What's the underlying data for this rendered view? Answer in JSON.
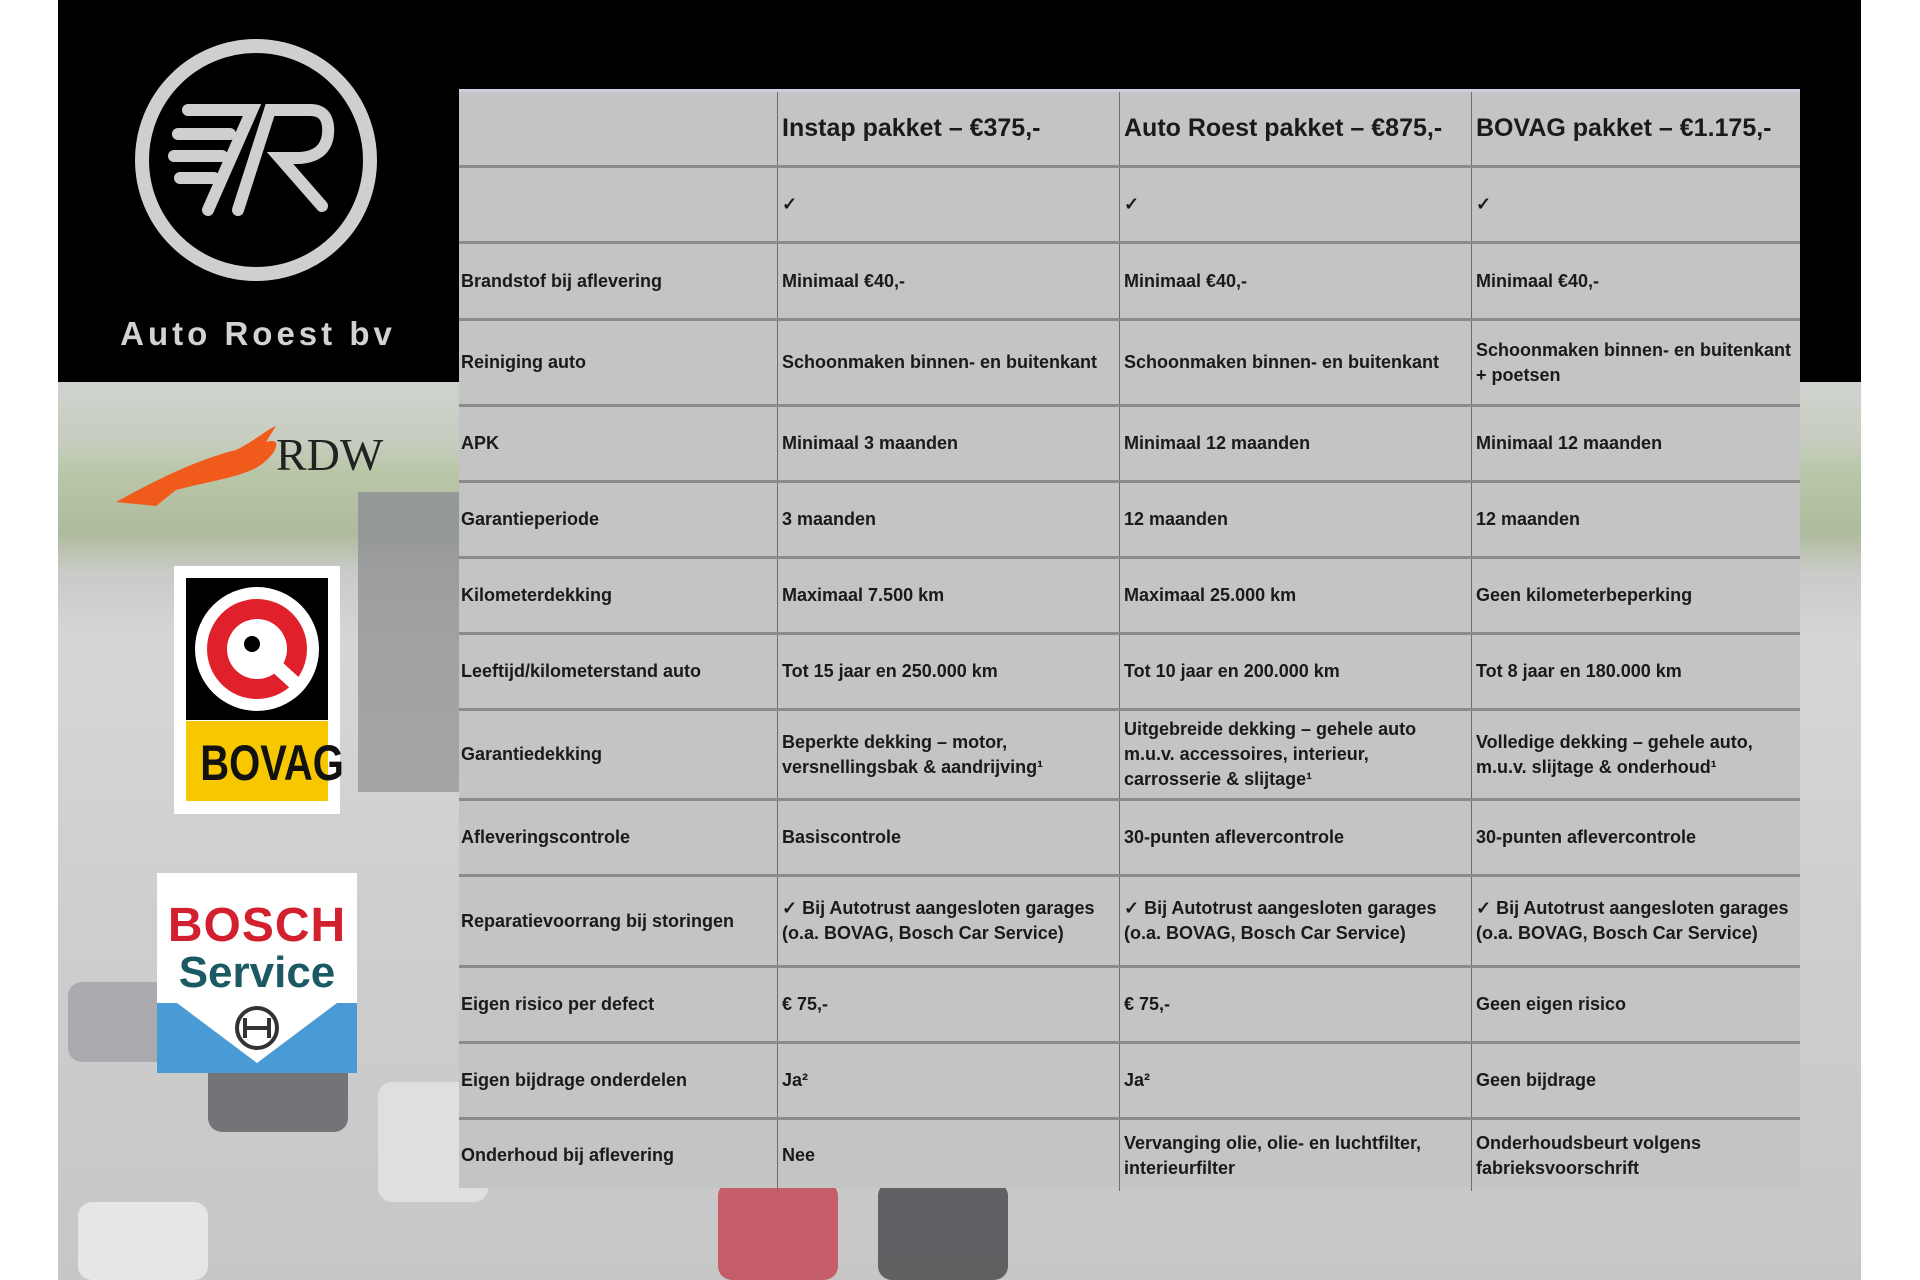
{
  "brand": {
    "name": "Auto Roest bv",
    "logo_monogram": "7R"
  },
  "partner_logos": [
    {
      "name": "RDW",
      "color": "#f05a1a"
    },
    {
      "name": "BOVAG",
      "color": "#f7c800"
    },
    {
      "name": "BOSCH",
      "subtitle": "Service",
      "color": "#d2202e"
    }
  ],
  "table": {
    "headers": [
      "",
      "Instap pakket – €375,-",
      "Auto Roest pakket – €875,-",
      "BOVAG pakket – €1.175,-"
    ],
    "rows": [
      [
        "",
        "✓",
        "✓",
        "✓"
      ],
      [
        "Brandstof bij aflevering",
        "Minimaal €40,-",
        "Minimaal €40,-",
        "Minimaal €40,-"
      ],
      [
        "Reiniging auto",
        "Schoonmaken binnen- en buitenkant",
        "Schoonmaken binnen- en buitenkant",
        "Schoonmaken binnen- en buitenkant + poetsen"
      ],
      [
        "APK",
        "Minimaal 3 maanden",
        "Minimaal 12 maanden",
        "Minimaal 12 maanden"
      ],
      [
        "Garantieperiode",
        "3 maanden",
        "12 maanden",
        "12 maanden"
      ],
      [
        "Kilometerdekking",
        "Maximaal 7.500 km",
        "Maximaal 25.000 km",
        "Geen kilometerbeperking"
      ],
      [
        "Leeftijd/kilometerstand auto",
        "Tot 15 jaar en 250.000 km",
        "Tot 10 jaar en 200.000 km",
        "Tot 8 jaar en 180.000 km"
      ],
      [
        "Garantiedekking",
        "Beperkte dekking – motor, versnellingsbak & aandrijving¹",
        "Uitgebreide dekking – gehele auto m.u.v. accessoires, interieur, carrosserie & slijtage¹",
        "Volledige dekking – gehele auto, m.u.v. slijtage & onderhoud¹"
      ],
      [
        "Afleveringscontrole",
        "Basiscontrole",
        "30-punten aflevercontrole",
        "30-punten aflevercontrole"
      ],
      [
        "Reparatievoorrang bij storingen",
        "✓ Bij Autotrust aangesloten garages (o.a. BOVAG, Bosch Car Service)",
        "✓ Bij Autotrust aangesloten garages (o.a. BOVAG, Bosch Car Service)",
        "✓ Bij Autotrust aangesloten garages (o.a. BOVAG, Bosch Car Service)"
      ],
      [
        "Eigen risico per defect",
        "€ 75,-",
        "€ 75,-",
        "Geen eigen risico"
      ],
      [
        "Eigen bijdrage onderdelen",
        "Ja²",
        "Ja²",
        "Geen bijdrage"
      ],
      [
        "Onderhoud bij aflevering",
        "Nee",
        "Vervanging olie, olie- en luchtfilter, interieurfilter",
        "Onderhoudsbeurt volgens fabrieksvoorschrift"
      ]
    ]
  }
}
